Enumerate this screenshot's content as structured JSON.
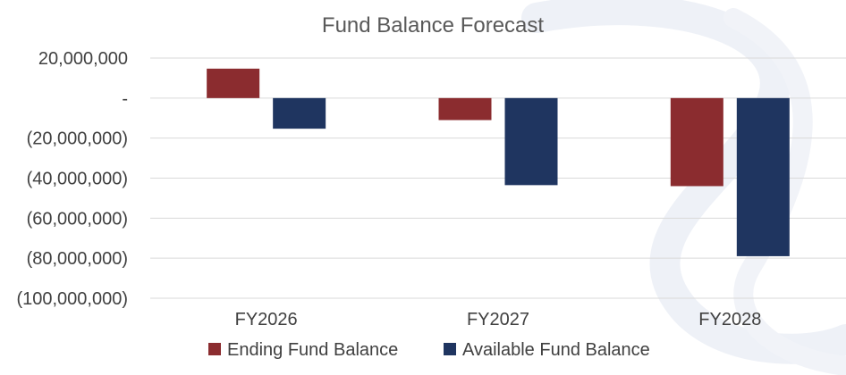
{
  "chart_data": {
    "type": "bar",
    "title": "Fund Balance Forecast",
    "xlabel": "",
    "ylabel": "",
    "categories": [
      "FY2026",
      "FY2027",
      "FY2028"
    ],
    "series": [
      {
        "name": "Ending Fund Balance",
        "color": "#8b2c2f",
        "values": [
          14700000,
          -11000000,
          -44000000
        ]
      },
      {
        "name": "Available Fund Balance",
        "color": "#1f3560",
        "values": [
          -15300000,
          -43500000,
          -79000000
        ]
      }
    ],
    "ylim": [
      -100000000,
      20000000
    ],
    "yticks": [
      {
        "value": 20000000,
        "label": "20,000,000"
      },
      {
        "value": 0,
        "label": "-"
      },
      {
        "value": -20000000,
        "label": "(20,000,000)"
      },
      {
        "value": -40000000,
        "label": "(40,000,000)"
      },
      {
        "value": -60000000,
        "label": "(60,000,000)"
      },
      {
        "value": -80000000,
        "label": "(80,000,000)"
      },
      {
        "value": -100000000,
        "label": "(100,000,000)"
      }
    ],
    "grid": true,
    "legend_position": "bottom"
  }
}
